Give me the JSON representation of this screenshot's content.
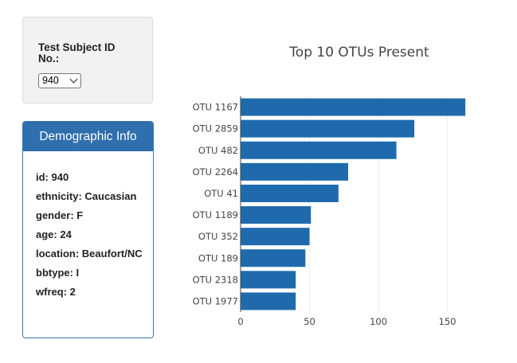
{
  "selector": {
    "label": "Test Subject ID No.:",
    "selected": "940"
  },
  "demographics": {
    "heading": "Demographic Info",
    "lines": [
      "id: 940",
      "ethnicity: Caucasian",
      "gender: F",
      "age: 24",
      "location: Beaufort/NC",
      "bbtype: I",
      "wfreq: 2"
    ]
  },
  "colors": {
    "bar": "#1f6aac",
    "panel_heading": "#2f6fae"
  },
  "chart_data": {
    "type": "bar",
    "orientation": "horizontal",
    "title": "Top 10 OTUs Present",
    "categories": [
      "OTU 1167",
      "OTU 2859",
      "OTU 482",
      "OTU 2264",
      "OTU 41",
      "OTU 1189",
      "OTU 352",
      "OTU 189",
      "OTU 2318",
      "OTU 1977"
    ],
    "values": [
      163,
      126,
      113,
      78,
      71,
      51,
      50,
      47,
      40,
      40
    ],
    "xticks": [
      0,
      50,
      100,
      150
    ],
    "xlim": [
      0,
      171
    ],
    "grid": true
  }
}
